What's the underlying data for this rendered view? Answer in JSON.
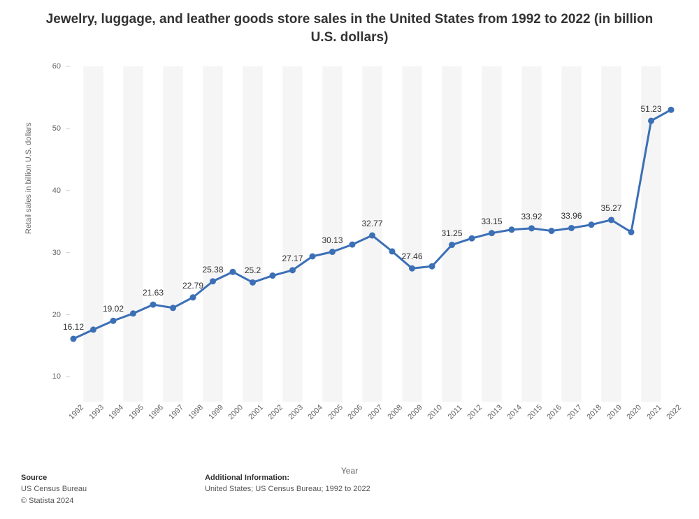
{
  "title": "Jewelry, luggage, and leather goods store sales in the United States from 1992 to 2022 (in billion U.S. dollars)",
  "chart": {
    "type": "line",
    "x_label": "Year",
    "y_label": "Retail sales in billion U.S. dollars",
    "ylim": [
      6,
      60
    ],
    "yticks": [
      10,
      20,
      30,
      40,
      50,
      60
    ],
    "years": [
      "1992",
      "1993",
      "1994",
      "1995",
      "1996",
      "1997",
      "1998",
      "1999",
      "2000",
      "2001",
      "2002",
      "2003",
      "2004",
      "2005",
      "2006",
      "2007",
      "2008",
      "2009",
      "2010",
      "2011",
      "2012",
      "2013",
      "2014",
      "2015",
      "2016",
      "2017",
      "2018",
      "2019",
      "2020",
      "2021",
      "2022"
    ],
    "values": [
      16.12,
      17.6,
      19.02,
      20.2,
      21.63,
      21.1,
      22.79,
      25.38,
      26.9,
      25.2,
      26.3,
      27.17,
      29.4,
      30.13,
      31.3,
      32.77,
      30.2,
      27.46,
      27.8,
      31.25,
      32.3,
      33.15,
      33.7,
      33.92,
      33.5,
      33.96,
      34.5,
      35.27,
      33.3,
      51.23,
      53.0
    ],
    "labels": [
      {
        "i": 0,
        "text": "16.12"
      },
      {
        "i": 2,
        "text": "19.02"
      },
      {
        "i": 4,
        "text": "21.63"
      },
      {
        "i": 6,
        "text": "22.79"
      },
      {
        "i": 7,
        "text": "25.38"
      },
      {
        "i": 9,
        "text": "25.2"
      },
      {
        "i": 11,
        "text": "27.17"
      },
      {
        "i": 13,
        "text": "30.13"
      },
      {
        "i": 15,
        "text": "32.77"
      },
      {
        "i": 17,
        "text": "27.46"
      },
      {
        "i": 19,
        "text": "31.25"
      },
      {
        "i": 21,
        "text": "33.15"
      },
      {
        "i": 23,
        "text": "33.92"
      },
      {
        "i": 25,
        "text": "33.96"
      },
      {
        "i": 27,
        "text": "35.27"
      },
      {
        "i": 29,
        "text": "51.23"
      }
    ],
    "line_color": "#3b6fb6",
    "line_width": 3,
    "marker_color": "#3b6fb6",
    "marker_radius": 4.5,
    "background_color": "#ffffff",
    "band_color": "#f5f5f5",
    "tick_color": "#666666",
    "label_fontsize": 12,
    "tick_fontsize": 11,
    "title_fontsize": 19
  },
  "footer": {
    "source_header": "Source",
    "source_line": "US Census Bureau",
    "copyright": "© Statista 2024",
    "info_header": "Additional Information:",
    "info_line": "United States; US Census Bureau; 1992 to 2022"
  }
}
